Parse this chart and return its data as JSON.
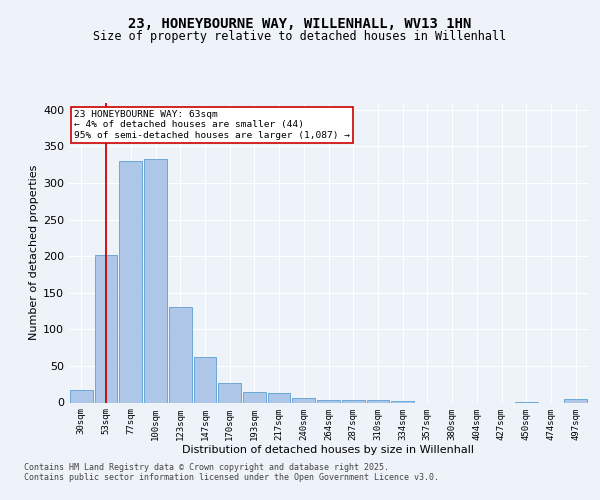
{
  "title_line1": "23, HONEYBOURNE WAY, WILLENHALL, WV13 1HN",
  "title_line2": "Size of property relative to detached houses in Willenhall",
  "xlabel": "Distribution of detached houses by size in Willenhall",
  "ylabel": "Number of detached properties",
  "footer_line1": "Contains HM Land Registry data © Crown copyright and database right 2025.",
  "footer_line2": "Contains public sector information licensed under the Open Government Licence v3.0.",
  "annotation_line1": "23 HONEYBOURNE WAY: 63sqm",
  "annotation_line2": "← 4% of detached houses are smaller (44)",
  "annotation_line3": "95% of semi-detached houses are larger (1,087) →",
  "categories": [
    "30sqm",
    "53sqm",
    "77sqm",
    "100sqm",
    "123sqm",
    "147sqm",
    "170sqm",
    "193sqm",
    "217sqm",
    "240sqm",
    "264sqm",
    "287sqm",
    "310sqm",
    "334sqm",
    "357sqm",
    "380sqm",
    "404sqm",
    "427sqm",
    "450sqm",
    "474sqm",
    "497sqm"
  ],
  "values": [
    17,
    201,
    330,
    333,
    131,
    62,
    26,
    15,
    13,
    6,
    4,
    4,
    4,
    2,
    0,
    0,
    0,
    0,
    1,
    0,
    5
  ],
  "bar_color": "#aec6e8",
  "bar_edge_color": "#5a9fd4",
  "vline_color": "#cc0000",
  "vline_position": 1,
  "background_color": "#eef2f9",
  "grid_color": "#ffffff",
  "ylim": [
    0,
    410
  ],
  "yticks": [
    0,
    50,
    100,
    150,
    200,
    250,
    300,
    350,
    400
  ]
}
